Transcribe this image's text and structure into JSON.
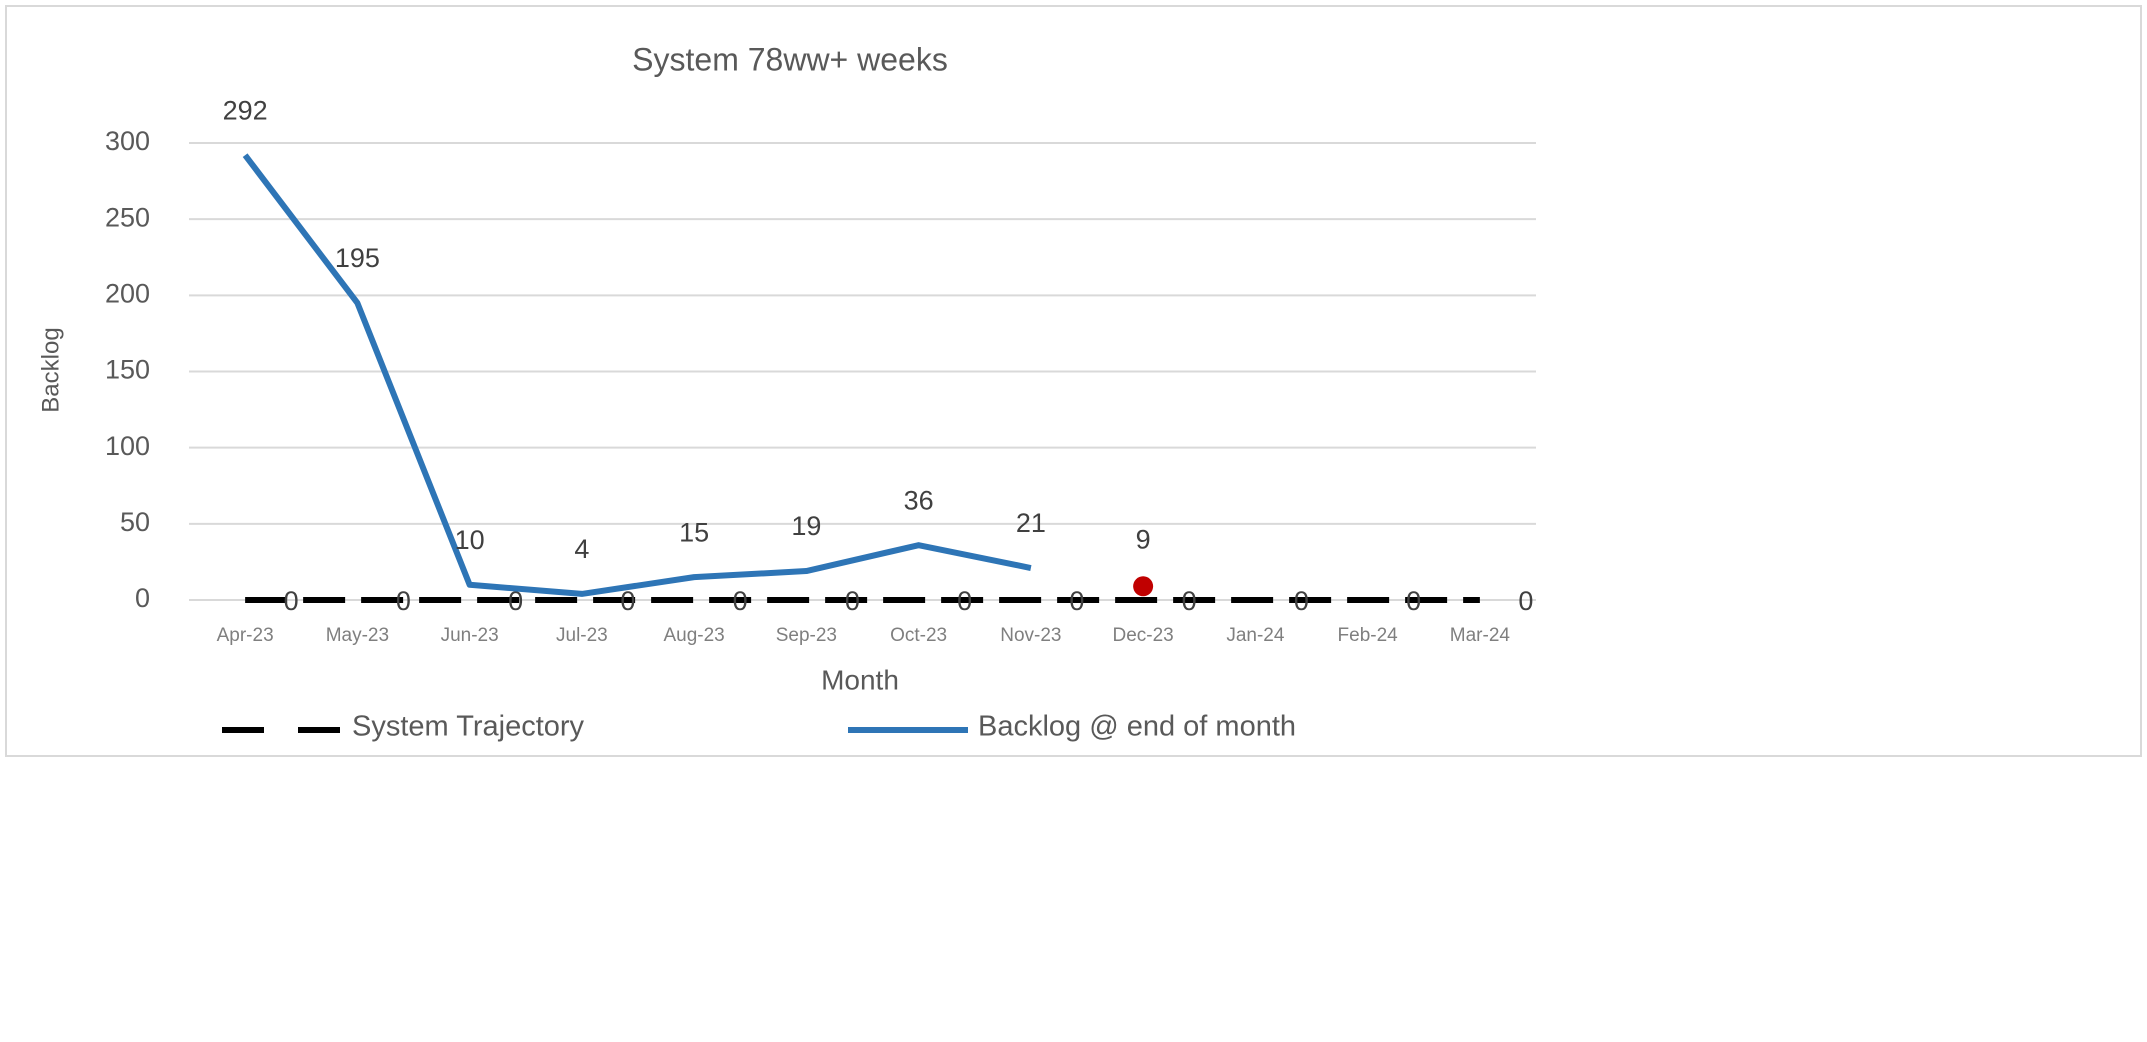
{
  "chart_data": {
    "type": "line",
    "title": "System 78ww+ weeks",
    "x_label": "Month",
    "y_label": "Backlog",
    "categories": [
      "Apr-23",
      "May-23",
      "Jun-23",
      "Jul-23",
      "Aug-23",
      "Sep-23",
      "Oct-23",
      "Nov-23",
      "Dec-23",
      "Jan-24",
      "Feb-24",
      "Mar-24"
    ],
    "series": [
      {
        "name": "System Trajectory",
        "color": "#000000",
        "dashed": true,
        "values": [
          0,
          0,
          0,
          0,
          0,
          0,
          0,
          0,
          0,
          0,
          0,
          0
        ]
      },
      {
        "name": "Backlog @ end of month",
        "color": "#2e75b6",
        "values": [
          292,
          195,
          10,
          4,
          15,
          19,
          36,
          21,
          null,
          null,
          null,
          null
        ]
      },
      {
        "color": "#c00000",
        "marker": "dot",
        "values": [
          null,
          null,
          null,
          null,
          null,
          null,
          null,
          null,
          9,
          null,
          null,
          null
        ]
      }
    ],
    "ylim": [
      0,
      300
    ],
    "yticks": [
      0,
      50,
      100,
      150,
      200,
      250,
      300
    ],
    "grid": true,
    "legend": "bottom"
  }
}
